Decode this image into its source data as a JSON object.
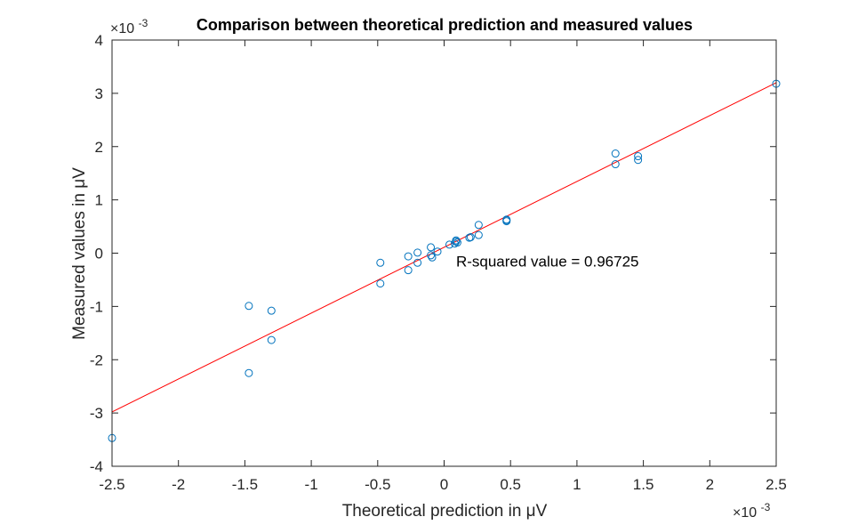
{
  "chart_data": {
    "type": "scatter",
    "title": "Comparison between theoretical prediction and measured values",
    "xlabel": "Theoretical prediction in μV",
    "ylabel": "Measured values in μV",
    "x_multiplier_label": "×10",
    "x_multiplier_exponent": "-3",
    "y_multiplier_label": "×10",
    "y_multiplier_exponent": "-3",
    "xlim": [
      -2.5,
      2.5
    ],
    "ylim": [
      -4,
      4
    ],
    "xticks": [
      -2.5,
      -2,
      -1.5,
      -1,
      -0.5,
      0,
      0.5,
      1,
      1.5,
      2,
      2.5
    ],
    "yticks": [
      -4,
      -3,
      -2,
      -1,
      0,
      1,
      2,
      3,
      4
    ],
    "xtick_labels": [
      "-2.5",
      "-2",
      "-1.5",
      "-1",
      "-0.5",
      "0",
      "0.5",
      "1",
      "1.5",
      "2",
      "2.5"
    ],
    "ytick_labels": [
      "-4",
      "-3",
      "-2",
      "-1",
      "0",
      "1",
      "2",
      "3",
      "4"
    ],
    "grid": false,
    "marker_color": "#0072BD",
    "fit_color": "#FF0000",
    "points": [
      {
        "x": -2.5,
        "y": -3.47
      },
      {
        "x": -1.47,
        "y": -0.99
      },
      {
        "x": -1.47,
        "y": -2.25
      },
      {
        "x": -1.3,
        "y": -1.08
      },
      {
        "x": -1.3,
        "y": -1.63
      },
      {
        "x": -0.48,
        "y": -0.18
      },
      {
        "x": -0.48,
        "y": -0.57
      },
      {
        "x": -0.27,
        "y": -0.06
      },
      {
        "x": -0.27,
        "y": -0.32
      },
      {
        "x": -0.2,
        "y": 0.01
      },
      {
        "x": -0.2,
        "y": -0.18
      },
      {
        "x": -0.1,
        "y": 0.11
      },
      {
        "x": -0.1,
        "y": -0.04
      },
      {
        "x": -0.09,
        "y": -0.08
      },
      {
        "x": -0.05,
        "y": 0.03
      },
      {
        "x": 0.04,
        "y": 0.16
      },
      {
        "x": 0.08,
        "y": 0.18
      },
      {
        "x": 0.09,
        "y": 0.22
      },
      {
        "x": 0.09,
        "y": 0.24
      },
      {
        "x": 0.1,
        "y": 0.2
      },
      {
        "x": 0.19,
        "y": 0.29
      },
      {
        "x": 0.2,
        "y": 0.3
      },
      {
        "x": 0.26,
        "y": 0.34
      },
      {
        "x": 0.26,
        "y": 0.53
      },
      {
        "x": 0.47,
        "y": 0.6
      },
      {
        "x": 0.47,
        "y": 0.62
      },
      {
        "x": 0.47,
        "y": 0.63
      },
      {
        "x": 1.29,
        "y": 1.67
      },
      {
        "x": 1.29,
        "y": 1.87
      },
      {
        "x": 1.46,
        "y": 1.75
      },
      {
        "x": 1.46,
        "y": 1.82
      },
      {
        "x": 2.5,
        "y": 3.18
      }
    ],
    "fit_line": {
      "x": [
        -2.5,
        2.5
      ],
      "y": [
        -2.98,
        3.2
      ]
    },
    "annotation": {
      "text": "R-squared value = 0.96725",
      "x": 0.09,
      "y": -0.15
    }
  }
}
